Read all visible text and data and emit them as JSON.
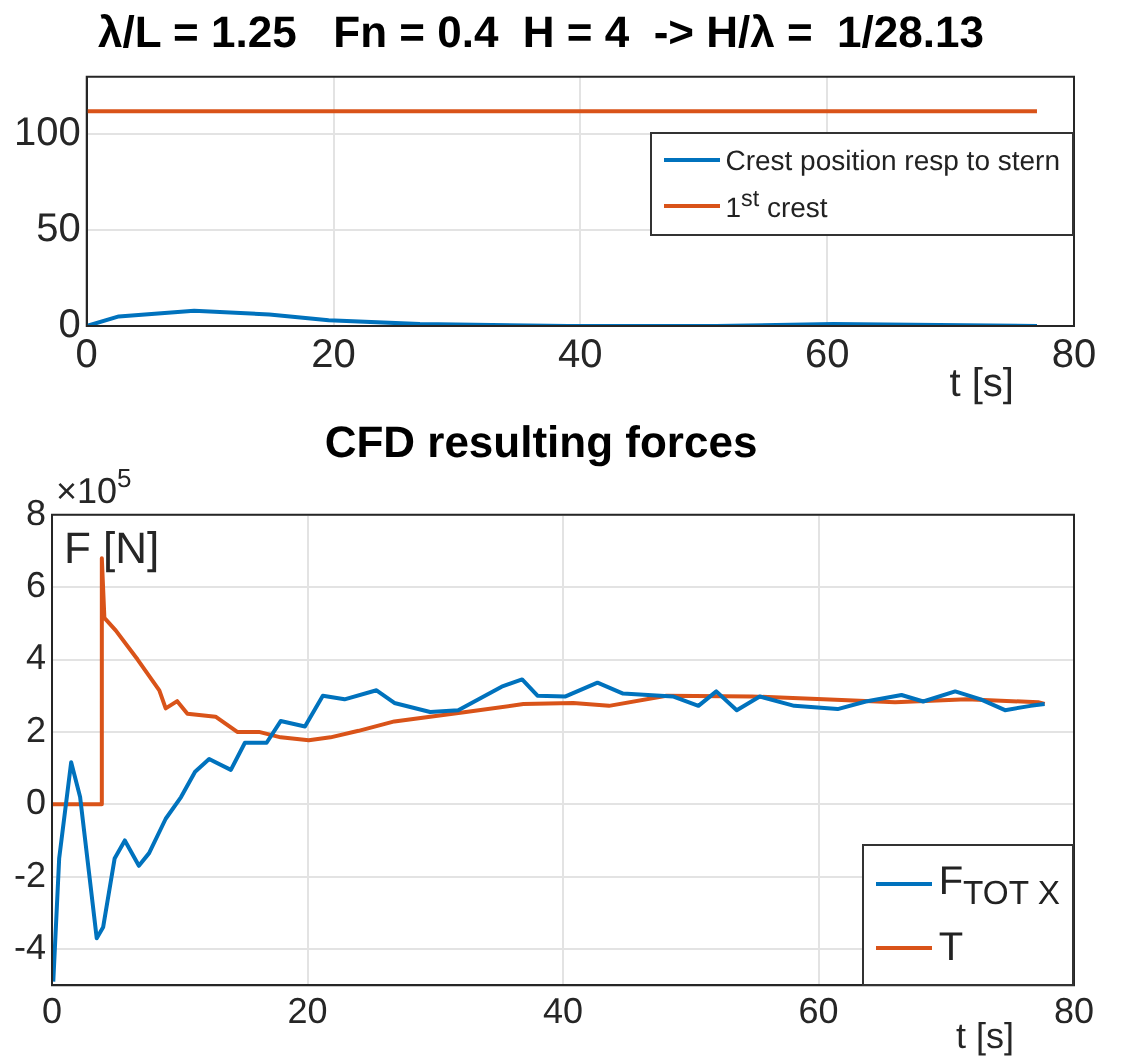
{
  "chart_data": [
    {
      "type": "line",
      "title": "λ/L = 1.25   Fn = 0.4  H = 4  -> H/λ =  1/28.13",
      "xlabel": "t [s]",
      "xlim": [
        0,
        80
      ],
      "xticks": [
        0,
        20,
        40,
        60,
        80
      ],
      "ylim": [
        0,
        130
      ],
      "yticks": [
        0,
        50,
        100
      ],
      "grid": true,
      "legend": "top right",
      "series": [
        {
          "name": "Crest position resp to stern",
          "color": "#0072bd",
          "x": [
            0,
            2.6,
            8.7,
            14.8,
            19.6,
            27,
            39,
            51,
            60.5,
            77
          ],
          "values": [
            0,
            5,
            8,
            6,
            3,
            1,
            0,
            0,
            1,
            0
          ]
        },
        {
          "name": "1$^{st}$ crest",
          "color": "#d95319",
          "x": [
            0,
            77
          ],
          "values": [
            112,
            112
          ]
        }
      ]
    },
    {
      "type": "line",
      "title": "CFD resulting forces",
      "xlabel": "t [s]",
      "ylabel": "F [N]",
      "annotations": [
        "×10$^{5}$"
      ],
      "xlim": [
        0,
        80
      ],
      "xticks": [
        0,
        20,
        40,
        60,
        80
      ],
      "ylim": [
        -5,
        8
      ],
      "yticks": [
        -4,
        -2,
        0,
        2,
        4,
        6,
        8
      ],
      "grid": true,
      "legend": "bottom right",
      "series": [
        {
          "name": "F$_{TOT X}$",
          "color": "#0072bd",
          "x": [
            0.1,
            0.56,
            1.5,
            2.2,
            2.9,
            3.5,
            4.0,
            4.9,
            5.7,
            6.8,
            7.6,
            8.9,
            10.1,
            11.2,
            12.3,
            14.0,
            15.1,
            16.8,
            17.9,
            19.8,
            21.2,
            22.9,
            25.4,
            26.8,
            29.6,
            31.8,
            35.2,
            36.8,
            38,
            40.2,
            42.7,
            44.7,
            48.6,
            50.6,
            52,
            53.6,
            55.4,
            58.1,
            61.5,
            63.7,
            66.5,
            68.2,
            70.7,
            72.7,
            74.6,
            76.6,
            77.7
          ],
          "values": [
            -4.9,
            -1.5,
            1.16,
            0.2,
            -1.9,
            -3.7,
            -3.4,
            -1.5,
            -1.0,
            -1.7,
            -1.35,
            -0.4,
            0.2,
            0.9,
            1.25,
            0.95,
            1.7,
            1.7,
            2.3,
            2.15,
            3.0,
            2.9,
            3.15,
            2.8,
            2.55,
            2.6,
            3.25,
            3.45,
            3.0,
            2.98,
            3.36,
            3.06,
            2.98,
            2.72,
            3.12,
            2.6,
            2.98,
            2.72,
            2.63,
            2.84,
            3.02,
            2.84,
            3.12,
            2.9,
            2.6,
            2.72,
            2.77
          ]
        },
        {
          "name": "T",
          "color": "#d95319",
          "x": [
            0,
            3.9,
            3.9,
            4.1,
            5.0,
            6.7,
            8.4,
            8.9,
            9.8,
            10.6,
            12.8,
            14.5,
            16.2,
            17.9,
            20.1,
            21.8,
            24,
            26.8,
            29.6,
            32.4,
            36.9,
            40.8,
            43.6,
            48.1,
            54.8,
            60.4,
            66,
            71.6,
            77.2,
            77.7
          ],
          "values": [
            0,
            0,
            6.8,
            5.15,
            4.8,
            4.0,
            3.15,
            2.65,
            2.85,
            2.5,
            2.42,
            2.0,
            2.0,
            1.85,
            1.77,
            1.85,
            2.03,
            2.29,
            2.42,
            2.55,
            2.77,
            2.8,
            2.72,
            3.0,
            2.98,
            2.9,
            2.82,
            2.9,
            2.82,
            2.77
          ]
        }
      ]
    }
  ]
}
